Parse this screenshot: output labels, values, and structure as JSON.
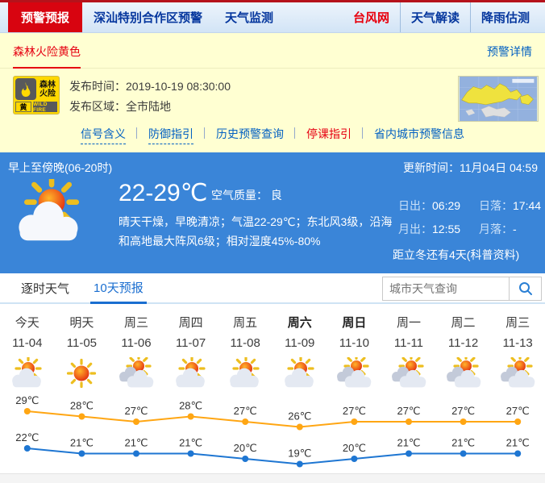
{
  "nav": {
    "active_tab": "预警预报",
    "links": [
      {
        "label": "深汕特别合作区预警"
      },
      {
        "label": "天气监测"
      }
    ],
    "right_links": [
      {
        "label": "台风网"
      },
      {
        "label": "天气解读"
      },
      {
        "label": "降雨估测"
      }
    ]
  },
  "alert_bar": {
    "title": "森林火险黄色",
    "detail_link": "预警详情"
  },
  "alert": {
    "icon": {
      "type_line1": "森林",
      "type_line2": "火险",
      "level": "黄",
      "en": "WILD FIRE"
    },
    "publish_time_label": "发布时间：",
    "publish_time": "2019-10-19 08:30:00",
    "publish_area_label": "发布区域：",
    "publish_area": "全市陆地",
    "links": [
      {
        "label": "信号含义"
      },
      {
        "label": "防御指引"
      },
      {
        "label": "历史预警查询"
      },
      {
        "label": "停课指引"
      },
      {
        "label": "省内城市预警信息"
      }
    ]
  },
  "current": {
    "period": "早上至傍晚(06-20时)",
    "update_label": "更新时间：",
    "update_time": "11月04日 04:59",
    "temp_range": "22-29℃",
    "aqi_label": "空气质量：",
    "aqi_value": "良",
    "description": "晴天干燥，早晚清凉；气温22-29℃；东北风3级，沿海和高地最大阵风6级；相对湿度45%-80%",
    "sunrise_label": "日出：",
    "sunrise": "06:29",
    "sunset_label": "日落：",
    "sunset": "17:44",
    "moonrise_label": "月出：",
    "moonrise": "12:55",
    "moonset_label": "月落：",
    "moonset": "-",
    "solar_term": "距立冬还有4天(科普资料)"
  },
  "tabs": {
    "hourly": "逐时天气",
    "ten_day": "10天预报"
  },
  "search": {
    "placeholder": "城市天气查询"
  },
  "chart_data": {
    "type": "line",
    "categories": [
      "今天",
      "明天",
      "周三",
      "周四",
      "周五",
      "周六",
      "周日",
      "周一",
      "周二",
      "周三"
    ],
    "dates": [
      "11-04",
      "11-05",
      "11-06",
      "11-07",
      "11-08",
      "11-09",
      "11-10",
      "11-11",
      "11-12",
      "11-13"
    ],
    "icons": [
      "partly-cloudy",
      "sunny",
      "cloudy",
      "partly-cloudy",
      "partly-cloudy",
      "partly-cloudy",
      "cloudy",
      "cloudy",
      "cloudy",
      "cloudy"
    ],
    "weekend_bold": [
      5,
      6
    ],
    "series": [
      {
        "name": "high",
        "color": "#ffa613",
        "values": [
          29,
          28,
          27,
          28,
          27,
          26,
          27,
          27,
          27,
          27
        ]
      },
      {
        "name": "low",
        "color": "#1e76d2",
        "values": [
          22,
          21,
          21,
          21,
          20,
          19,
          20,
          21,
          21,
          21
        ]
      }
    ],
    "unit": "℃",
    "legend_position": "none",
    "grid": false
  },
  "colors": {
    "accent_red": "#e60012",
    "link_blue": "#0461c2",
    "panel_blue": "#3a85d8",
    "alert_yellow": "#ffd800",
    "high_line": "#ffa613",
    "low_line": "#1e76d2"
  }
}
